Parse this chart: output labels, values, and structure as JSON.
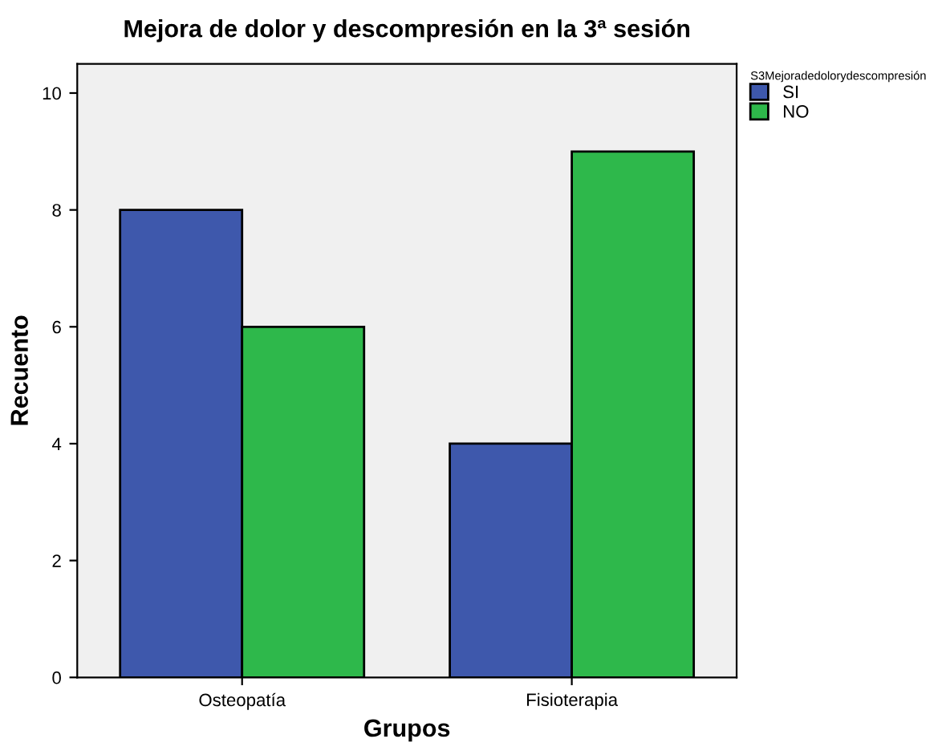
{
  "chart_data": {
    "type": "bar",
    "title": "Mejora de dolor y descompresión en la 3ª sesión",
    "xlabel": "Grupos",
    "ylabel": "Recuento",
    "legend_title": "S3Mejoradedolorydescompresión",
    "categories": [
      "Osteopatía",
      "Fisioterapia"
    ],
    "series": [
      {
        "name": "SI",
        "color": "#3e58ac",
        "values": [
          8,
          4
        ]
      },
      {
        "name": "NO",
        "color": "#2eb84b",
        "values": [
          6,
          9
        ]
      }
    ],
    "ylim": [
      0,
      10.5
    ],
    "yticks": [
      0,
      2,
      4,
      6,
      8,
      10
    ],
    "grid": false,
    "legend": "top right"
  }
}
